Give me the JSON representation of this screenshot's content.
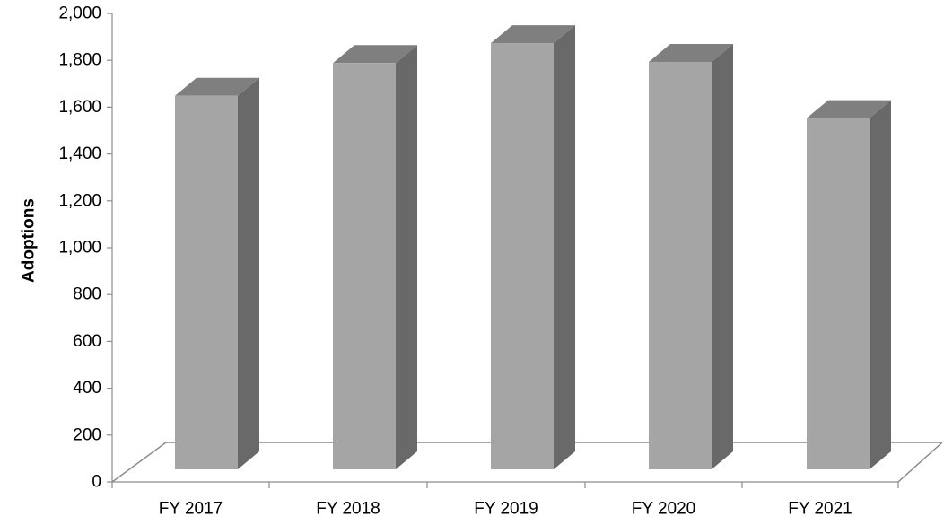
{
  "chart_data": {
    "type": "bar",
    "style": "3d-column",
    "categories": [
      "FY 2017",
      "FY 2018",
      "FY 2019",
      "FY 2020",
      "FY 2021"
    ],
    "values": [
      1610,
      1750,
      1835,
      1755,
      1515
    ],
    "title": "",
    "xlabel": "",
    "ylabel": "Adoptions",
    "ylim": [
      0,
      2000
    ],
    "yticks": [
      0,
      200,
      400,
      600,
      800,
      1000,
      1200,
      1400,
      1600,
      1800,
      2000
    ],
    "ytick_labels": [
      "0",
      "200",
      "400",
      "600",
      "800",
      "1,000",
      "1,200",
      "1,400",
      "1,600",
      "1,800",
      "2,000"
    ],
    "grid": false,
    "legend": "none",
    "colors": {
      "bar_front": "#a5a5a5",
      "bar_side": "#696969",
      "bar_top": "#7f7f7f",
      "floor_line": "#8c8c8c",
      "axis": "#8c8c8c"
    }
  }
}
